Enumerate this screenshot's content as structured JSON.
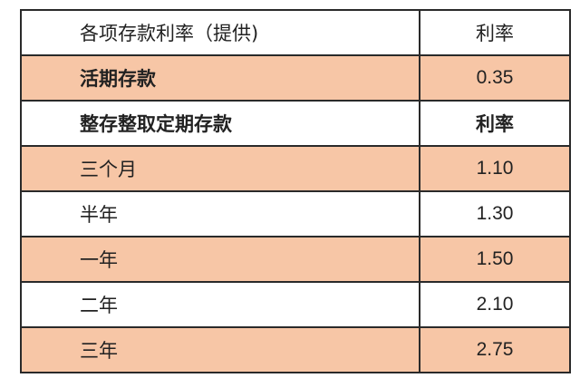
{
  "colors": {
    "highlight_row": "#f7c6a6",
    "plain_row": "#ffffff",
    "border": "#2a2a2a"
  },
  "table": {
    "rows": [
      {
        "label": "各项存款利率（提供)",
        "value": "利率",
        "bold": false,
        "shade": "white"
      },
      {
        "label": "活期存款",
        "value": "0.35",
        "bold": true,
        "shade": "peach"
      },
      {
        "label": "整存整取定期存款",
        "value": "利率",
        "bold": true,
        "shade": "white"
      },
      {
        "label": "三个月",
        "value": "1.10",
        "bold": false,
        "shade": "peach"
      },
      {
        "label": "半年",
        "value": "1.30",
        "bold": false,
        "shade": "white"
      },
      {
        "label": "一年",
        "value": "1.50",
        "bold": false,
        "shade": "peach"
      },
      {
        "label": "二年",
        "value": "2.10",
        "bold": false,
        "shade": "white"
      },
      {
        "label": "三年",
        "value": "2.75",
        "bold": false,
        "shade": "peach"
      }
    ]
  }
}
